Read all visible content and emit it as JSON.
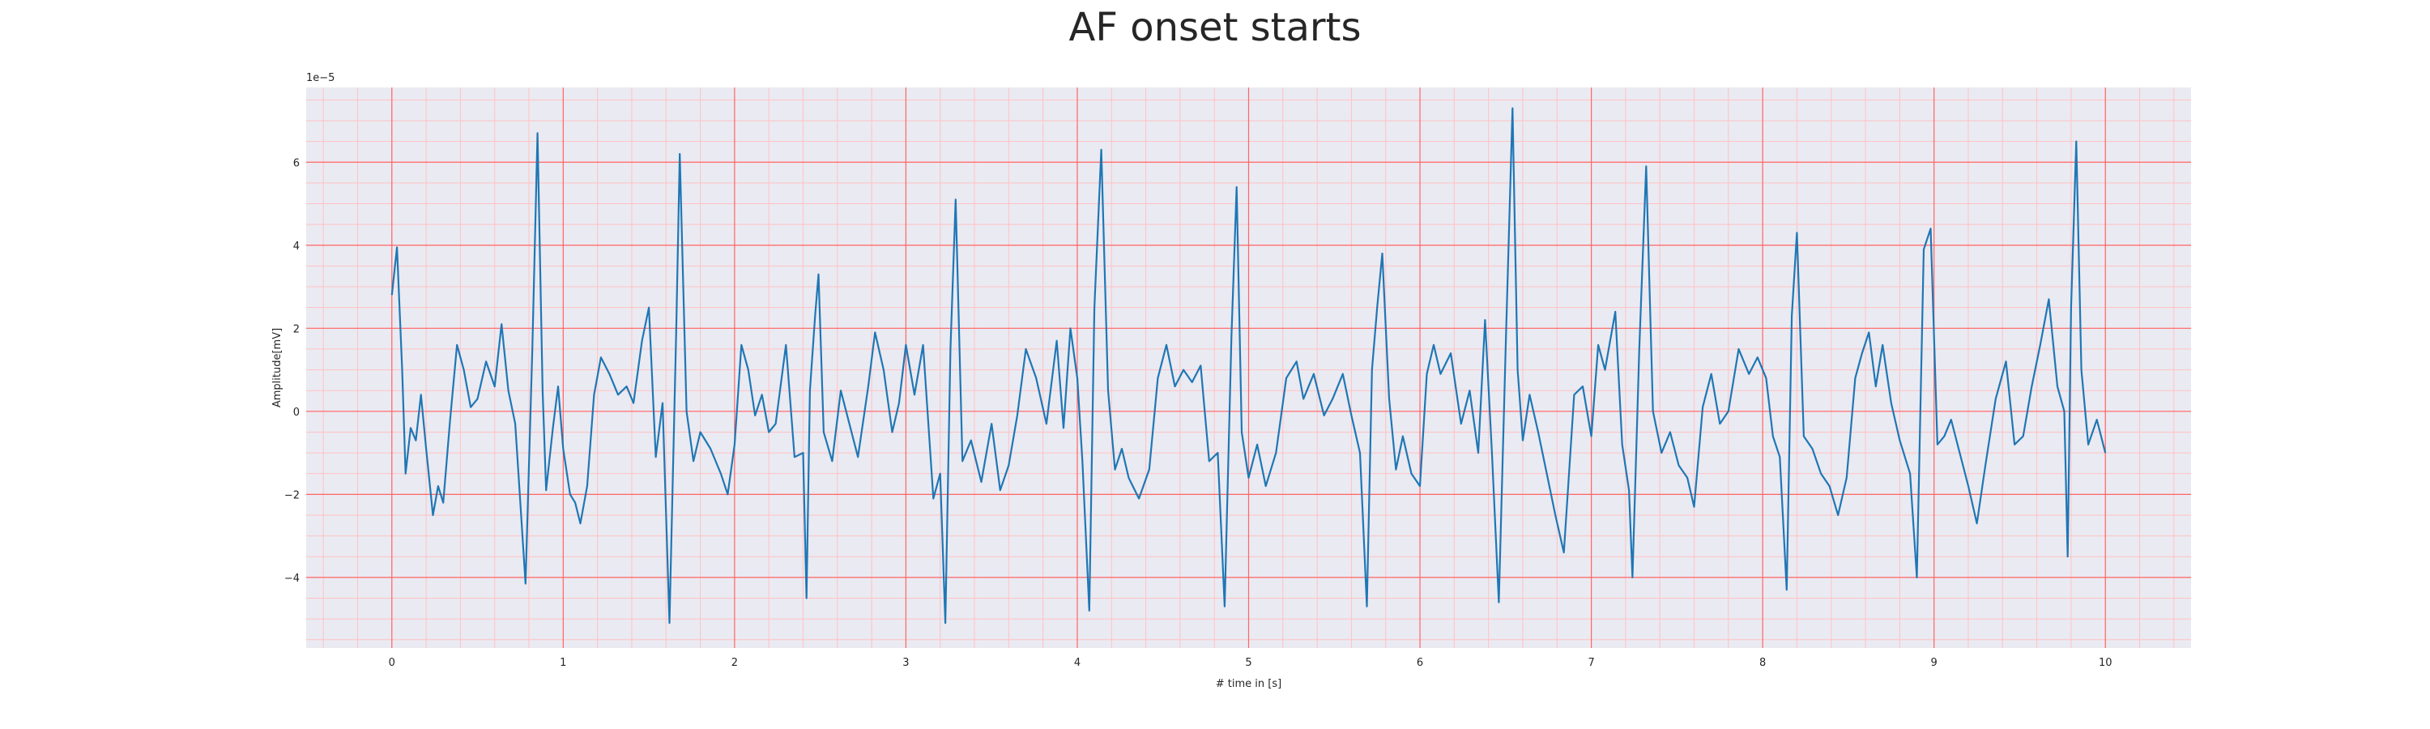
{
  "chart_data": {
    "type": "line",
    "title": "AF onset starts",
    "xlabel": "# time in [s]",
    "ylabel": "Amplitude[mV]",
    "y_offset_label": "1e−5",
    "xlim": [
      -0.5,
      10.5
    ],
    "ylim": [
      -5.7,
      7.8
    ],
    "x_ticks": [
      0,
      1,
      2,
      3,
      4,
      5,
      6,
      7,
      8,
      9,
      10
    ],
    "x_tick_labels": [
      "0",
      "1",
      "2",
      "3",
      "4",
      "5",
      "6",
      "7",
      "8",
      "9",
      "10"
    ],
    "y_ticks": [
      -4,
      -2,
      0,
      2,
      4,
      6
    ],
    "y_tick_labels": [
      "−4",
      "−2",
      "0",
      "2",
      "4",
      "6"
    ],
    "grid": "major and minor",
    "colors": {
      "background": "#eaeaf2",
      "major_grid": "#ff6666",
      "minor_grid": "#ffc2c2",
      "line": "#1f77b4"
    },
    "series": [
      {
        "values": [
          [
            0.0,
            2.8
          ],
          [
            0.03,
            3.95
          ],
          [
            0.06,
            1.0
          ],
          [
            0.08,
            -1.5
          ],
          [
            0.11,
            -0.4
          ],
          [
            0.14,
            -0.7
          ],
          [
            0.17,
            0.4
          ],
          [
            0.2,
            -0.9
          ],
          [
            0.24,
            -2.5
          ],
          [
            0.27,
            -1.8
          ],
          [
            0.3,
            -2.2
          ],
          [
            0.34,
            -0.2
          ],
          [
            0.38,
            1.6
          ],
          [
            0.42,
            1.0
          ],
          [
            0.46,
            0.1
          ],
          [
            0.5,
            0.3
          ],
          [
            0.55,
            1.2
          ],
          [
            0.6,
            0.6
          ],
          [
            0.64,
            2.1
          ],
          [
            0.68,
            0.5
          ],
          [
            0.72,
            -0.3
          ],
          [
            0.78,
            -4.15
          ],
          [
            0.82,
            1.5
          ],
          [
            0.85,
            6.7
          ],
          [
            0.88,
            0.5
          ],
          [
            0.9,
            -1.9
          ],
          [
            0.94,
            -0.4
          ],
          [
            0.97,
            0.6
          ],
          [
            1.0,
            -0.9
          ],
          [
            1.04,
            -2.0
          ],
          [
            1.07,
            -2.2
          ],
          [
            1.1,
            -2.7
          ],
          [
            1.14,
            -1.8
          ],
          [
            1.18,
            0.4
          ],
          [
            1.22,
            1.3
          ],
          [
            1.27,
            0.9
          ],
          [
            1.32,
            0.4
          ],
          [
            1.37,
            0.6
          ],
          [
            1.41,
            0.2
          ],
          [
            1.46,
            1.7
          ],
          [
            1.5,
            2.5
          ],
          [
            1.54,
            -1.1
          ],
          [
            1.58,
            0.2
          ],
          [
            1.62,
            -5.1
          ],
          [
            1.66,
            2.0
          ],
          [
            1.68,
            6.2
          ],
          [
            1.72,
            0.0
          ],
          [
            1.76,
            -1.2
          ],
          [
            1.8,
            -0.5
          ],
          [
            1.86,
            -0.9
          ],
          [
            1.92,
            -1.5
          ],
          [
            1.96,
            -2.0
          ],
          [
            2.0,
            -0.8
          ],
          [
            2.04,
            1.6
          ],
          [
            2.08,
            1.0
          ],
          [
            2.12,
            -0.1
          ],
          [
            2.16,
            0.4
          ],
          [
            2.2,
            -0.5
          ],
          [
            2.24,
            -0.3
          ],
          [
            2.3,
            1.6
          ],
          [
            2.35,
            -1.1
          ],
          [
            2.4,
            -1.0
          ],
          [
            2.42,
            -4.5
          ],
          [
            2.44,
            0.5
          ],
          [
            2.47,
            2.3
          ],
          [
            2.49,
            3.3
          ],
          [
            2.52,
            -0.5
          ],
          [
            2.57,
            -1.2
          ],
          [
            2.62,
            0.5
          ],
          [
            2.67,
            -0.3
          ],
          [
            2.72,
            -1.1
          ],
          [
            2.78,
            0.6
          ],
          [
            2.82,
            1.9
          ],
          [
            2.87,
            1.0
          ],
          [
            2.92,
            -0.5
          ],
          [
            2.96,
            0.2
          ],
          [
            3.0,
            1.6
          ],
          [
            3.05,
            0.4
          ],
          [
            3.1,
            1.6
          ],
          [
            3.16,
            -2.1
          ],
          [
            3.2,
            -1.5
          ],
          [
            3.23,
            -5.1
          ],
          [
            3.26,
            1.5
          ],
          [
            3.29,
            5.1
          ],
          [
            3.33,
            -1.2
          ],
          [
            3.38,
            -0.7
          ],
          [
            3.44,
            -1.7
          ],
          [
            3.5,
            -0.3
          ],
          [
            3.55,
            -1.9
          ],
          [
            3.6,
            -1.3
          ],
          [
            3.65,
            -0.1
          ],
          [
            3.7,
            1.5
          ],
          [
            3.76,
            0.8
          ],
          [
            3.82,
            -0.3
          ],
          [
            3.88,
            1.7
          ],
          [
            3.92,
            -0.4
          ],
          [
            3.96,
            2.0
          ],
          [
            4.0,
            0.8
          ],
          [
            4.03,
            -1.2
          ],
          [
            4.07,
            -4.8
          ],
          [
            4.1,
            2.5
          ],
          [
            4.14,
            6.3
          ],
          [
            4.18,
            0.5
          ],
          [
            4.22,
            -1.4
          ],
          [
            4.26,
            -0.9
          ],
          [
            4.3,
            -1.6
          ],
          [
            4.36,
            -2.1
          ],
          [
            4.42,
            -1.4
          ],
          [
            4.47,
            0.8
          ],
          [
            4.52,
            1.6
          ],
          [
            4.57,
            0.6
          ],
          [
            4.62,
            1.0
          ],
          [
            4.67,
            0.7
          ],
          [
            4.72,
            1.1
          ],
          [
            4.77,
            -1.2
          ],
          [
            4.82,
            -1.0
          ],
          [
            4.86,
            -4.7
          ],
          [
            4.9,
            1.8
          ],
          [
            4.93,
            5.4
          ],
          [
            4.96,
            -0.5
          ],
          [
            5.0,
            -1.6
          ],
          [
            5.05,
            -0.8
          ],
          [
            5.1,
            -1.8
          ],
          [
            5.16,
            -1.0
          ],
          [
            5.22,
            0.8
          ],
          [
            5.28,
            1.2
          ],
          [
            5.32,
            0.3
          ],
          [
            5.38,
            0.9
          ],
          [
            5.44,
            -0.1
          ],
          [
            5.49,
            0.3
          ],
          [
            5.55,
            0.9
          ],
          [
            5.6,
            -0.1
          ],
          [
            5.65,
            -1.0
          ],
          [
            5.69,
            -4.7
          ],
          [
            5.72,
            1.0
          ],
          [
            5.75,
            2.5
          ],
          [
            5.78,
            3.8
          ],
          [
            5.82,
            0.3
          ],
          [
            5.86,
            -1.4
          ],
          [
            5.9,
            -0.6
          ],
          [
            5.95,
            -1.5
          ],
          [
            6.0,
            -1.8
          ],
          [
            6.04,
            0.9
          ],
          [
            6.08,
            1.6
          ],
          [
            6.12,
            0.9
          ],
          [
            6.18,
            1.4
          ],
          [
            6.24,
            -0.3
          ],
          [
            6.29,
            0.5
          ],
          [
            6.34,
            -1.0
          ],
          [
            6.38,
            2.2
          ],
          [
            6.42,
            -1.0
          ],
          [
            6.46,
            -4.6
          ],
          [
            6.5,
            1.5
          ],
          [
            6.54,
            7.3
          ],
          [
            6.57,
            1.0
          ],
          [
            6.6,
            -0.7
          ],
          [
            6.64,
            0.4
          ],
          [
            6.69,
            -0.5
          ],
          [
            6.74,
            -1.5
          ],
          [
            6.79,
            -2.5
          ],
          [
            6.84,
            -3.4
          ],
          [
            6.9,
            0.4
          ],
          [
            6.95,
            0.6
          ],
          [
            7.0,
            -0.6
          ],
          [
            7.04,
            1.6
          ],
          [
            7.08,
            1.0
          ],
          [
            7.14,
            2.4
          ],
          [
            7.18,
            -0.8
          ],
          [
            7.22,
            -1.9
          ],
          [
            7.24,
            -4.0
          ],
          [
            7.28,
            1.5
          ],
          [
            7.32,
            5.9
          ],
          [
            7.36,
            0.0
          ],
          [
            7.41,
            -1.0
          ],
          [
            7.46,
            -0.5
          ],
          [
            7.51,
            -1.3
          ],
          [
            7.56,
            -1.6
          ],
          [
            7.6,
            -2.3
          ],
          [
            7.65,
            0.1
          ],
          [
            7.7,
            0.9
          ],
          [
            7.75,
            -0.3
          ],
          [
            7.8,
            0.0
          ],
          [
            7.86,
            1.5
          ],
          [
            7.92,
            0.9
          ],
          [
            7.97,
            1.3
          ],
          [
            8.02,
            0.8
          ],
          [
            8.06,
            -0.6
          ],
          [
            8.1,
            -1.1
          ],
          [
            8.14,
            -4.3
          ],
          [
            8.17,
            2.3
          ],
          [
            8.2,
            4.3
          ],
          [
            8.24,
            -0.6
          ],
          [
            8.29,
            -0.9
          ],
          [
            8.34,
            -1.5
          ],
          [
            8.39,
            -1.8
          ],
          [
            8.44,
            -2.5
          ],
          [
            8.49,
            -1.6
          ],
          [
            8.54,
            0.8
          ],
          [
            8.58,
            1.4
          ],
          [
            8.62,
            1.9
          ],
          [
            8.66,
            0.6
          ],
          [
            8.7,
            1.6
          ],
          [
            8.75,
            0.2
          ],
          [
            8.8,
            -0.7
          ],
          [
            8.86,
            -1.5
          ],
          [
            8.9,
            -4.0
          ],
          [
            8.94,
            3.9
          ],
          [
            8.98,
            4.4
          ],
          [
            9.02,
            -0.8
          ],
          [
            9.06,
            -0.6
          ],
          [
            9.1,
            -0.2
          ],
          [
            9.15,
            -1.0
          ],
          [
            9.2,
            -1.8
          ],
          [
            9.25,
            -2.7
          ],
          [
            9.3,
            -1.3
          ],
          [
            9.36,
            0.3
          ],
          [
            9.42,
            1.2
          ],
          [
            9.47,
            -0.8
          ],
          [
            9.52,
            -0.6
          ],
          [
            9.57,
            0.6
          ],
          [
            9.62,
            1.6
          ],
          [
            9.67,
            2.7
          ],
          [
            9.72,
            0.6
          ],
          [
            9.76,
            0.0
          ],
          [
            9.78,
            -3.5
          ],
          [
            9.8,
            2.5
          ],
          [
            9.83,
            6.5
          ],
          [
            9.86,
            1.0
          ],
          [
            9.9,
            -0.8
          ],
          [
            9.95,
            -0.2
          ],
          [
            10.0,
            -1.0
          ]
        ]
      }
    ]
  }
}
